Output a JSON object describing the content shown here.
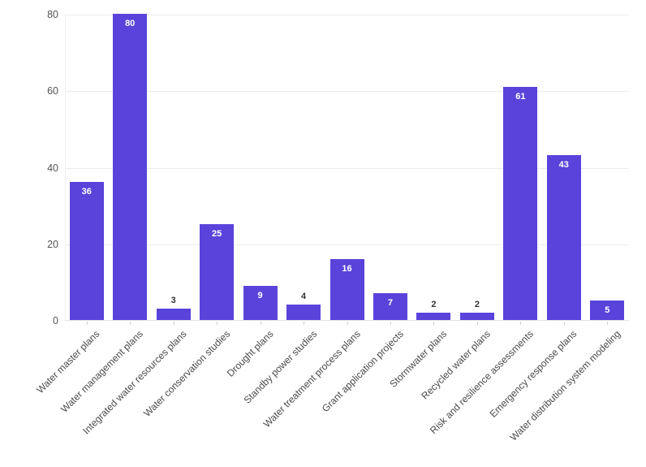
{
  "chart_data": {
    "type": "bar",
    "categories": [
      "Water master plans",
      "Water management plans",
      "Integrated water resources plans",
      "Water conservation studies",
      "Drought plans",
      "Standby power studies",
      "Water treatment process plans",
      "Grant application projects",
      "Stormwater plans",
      "Recycled water plans",
      "Risk and resilience assessments",
      "Emergency response plans",
      "Water distribution system modeling"
    ],
    "values": [
      36,
      80,
      3,
      25,
      9,
      4,
      16,
      7,
      2,
      2,
      61,
      43,
      5
    ],
    "value_labels": [
      "36",
      "80",
      "3",
      "25",
      "9",
      "4",
      "16",
      "7",
      "2",
      "2",
      "61",
      "43",
      "5"
    ],
    "ylim": [
      0,
      80
    ],
    "yticks": [
      0,
      20,
      40,
      60,
      80
    ],
    "grid": true,
    "legend": false,
    "colors": {
      "bar": "#5943db",
      "gridline": "#ececec",
      "axis_line": "#e4e4e4",
      "y_tick_text": "#555555",
      "x_tick_text": "#4a4a4a",
      "value_label_inside": "#ffffff",
      "value_label_outside": "#333333"
    }
  }
}
